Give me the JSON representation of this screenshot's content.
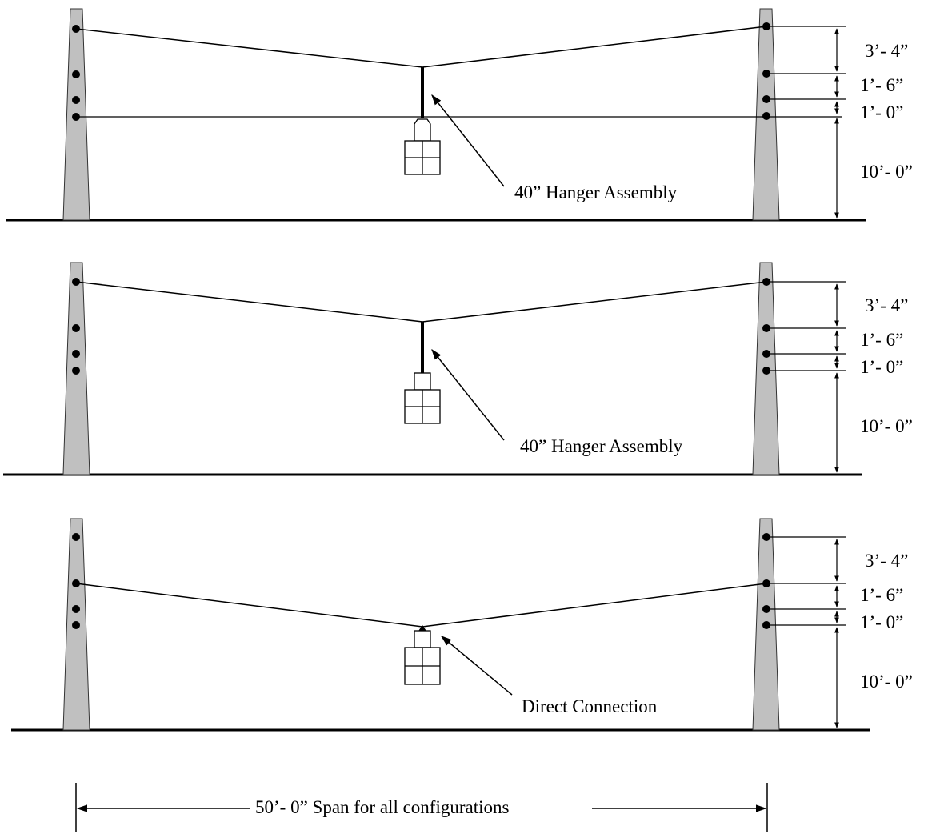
{
  "panels": [
    {
      "name": "hanger-top",
      "callout": "40” Hanger Assembly",
      "dimensions": [
        "3’- 4”",
        "1’- 6”",
        "1’- 0”",
        "10’- 0”"
      ]
    },
    {
      "name": "hanger-middle",
      "callout": "40” Hanger Assembly",
      "dimensions": [
        "3’- 4”",
        "1’- 6”",
        "1’- 0”",
        "10’- 0”"
      ]
    },
    {
      "name": "direct",
      "callout": "Direct Connection",
      "dimensions": [
        "3’- 4”",
        "1’- 6”",
        "1’- 0”",
        "10’- 0”"
      ]
    }
  ],
  "span_label": "50’- 0” Span for all configurations",
  "colors": {
    "pole_fill": "#c0c0c0",
    "line": "#000000",
    "background": "#ffffff"
  }
}
